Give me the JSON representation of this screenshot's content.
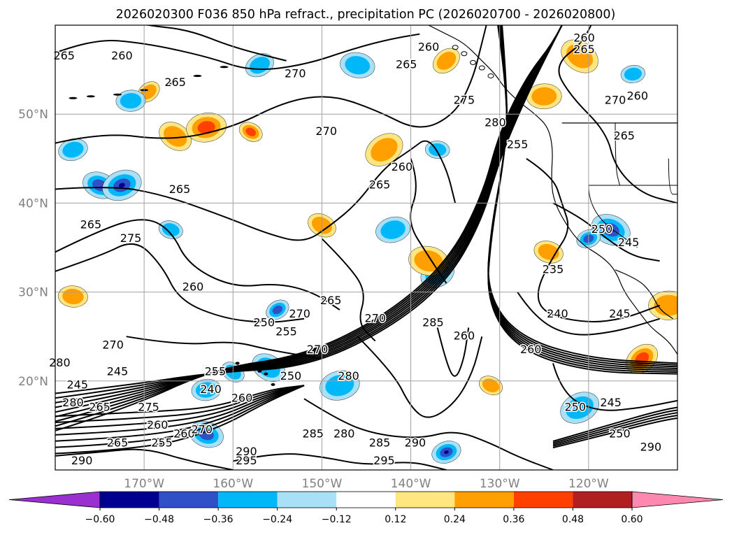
{
  "title": "2026020300 F036 850 hPa refract., precipitation PC (2026020700 - 2026020800)",
  "chart_data": {
    "type": "contour-map",
    "title": "2026020300 F036 850 hPa refract., precipitation PC (2026020700 - 2026020800)",
    "projection": "lat-lon",
    "lon_range": [
      -180,
      -110
    ],
    "lat_range": [
      10,
      60
    ],
    "grid": true,
    "x_ticks": [
      "170°W",
      "160°W",
      "150°W",
      "140°W",
      "130°W",
      "120°W"
    ],
    "x_tick_values": [
      -170,
      -160,
      -150,
      -140,
      -130,
      -120
    ],
    "y_ticks": [
      "20°N",
      "30°N",
      "40°N",
      "50°N"
    ],
    "y_tick_values": [
      20,
      30,
      40,
      50
    ],
    "contour_labels": [
      {
        "text": "265",
        "lon": -179,
        "lat": 56.5
      },
      {
        "text": "260",
        "lon": -172.5,
        "lat": 56.5
      },
      {
        "text": "265",
        "lon": -166.5,
        "lat": 53.5
      },
      {
        "text": "270",
        "lon": -153,
        "lat": 54.5
      },
      {
        "text": "265",
        "lon": -140.5,
        "lat": 55.5
      },
      {
        "text": "260",
        "lon": -138,
        "lat": 57.5
      },
      {
        "text": "275",
        "lon": -134,
        "lat": 51.5
      },
      {
        "text": "280",
        "lon": -130.5,
        "lat": 49
      },
      {
        "text": "270",
        "lon": -149.5,
        "lat": 48
      },
      {
        "text": "260",
        "lon": -141,
        "lat": 44
      },
      {
        "text": "265",
        "lon": -143.5,
        "lat": 42
      },
      {
        "text": "255",
        "lon": -128,
        "lat": 46.5
      },
      {
        "text": "260",
        "lon": -120.5,
        "lat": 58.5
      },
      {
        "text": "265",
        "lon": -120.5,
        "lat": 57.2
      },
      {
        "text": "270",
        "lon": -117,
        "lat": 51.5
      },
      {
        "text": "260",
        "lon": -114.5,
        "lat": 52
      },
      {
        "text": "265",
        "lon": -116,
        "lat": 47.5
      },
      {
        "text": "265",
        "lon": -166,
        "lat": 41.5
      },
      {
        "text": "265",
        "lon": -176,
        "lat": 37.5
      },
      {
        "text": "275",
        "lon": -171.5,
        "lat": 36
      },
      {
        "text": "260",
        "lon": -164.5,
        "lat": 30.5
      },
      {
        "text": "265",
        "lon": -149,
        "lat": 29
      },
      {
        "text": "270",
        "lon": -144,
        "lat": 27
      },
      {
        "text": "250",
        "lon": -156.5,
        "lat": 26.5
      },
      {
        "text": "255",
        "lon": -154,
        "lat": 25.5
      },
      {
        "text": "270",
        "lon": -152.5,
        "lat": 27.5
      },
      {
        "text": "270",
        "lon": -150.5,
        "lat": 23.5
      },
      {
        "text": "285",
        "lon": -137.5,
        "lat": 26.5
      },
      {
        "text": "260",
        "lon": -134,
        "lat": 25
      },
      {
        "text": "260",
        "lon": -126.5,
        "lat": 23.5
      },
      {
        "text": "240",
        "lon": -123.5,
        "lat": 27.5
      },
      {
        "text": "245",
        "lon": -116.5,
        "lat": 27.5
      },
      {
        "text": "235",
        "lon": -124,
        "lat": 32.5
      },
      {
        "text": "250",
        "lon": -118.5,
        "lat": 37
      },
      {
        "text": "245",
        "lon": -115.5,
        "lat": 35.5
      },
      {
        "text": "280",
        "lon": -179.5,
        "lat": 22
      },
      {
        "text": "270",
        "lon": -173.5,
        "lat": 24
      },
      {
        "text": "245",
        "lon": -177.5,
        "lat": 19.5
      },
      {
        "text": "245",
        "lon": -173,
        "lat": 21
      },
      {
        "text": "240",
        "lon": -162.5,
        "lat": 19
      },
      {
        "text": "255",
        "lon": -162,
        "lat": 21
      },
      {
        "text": "250",
        "lon": -153.5,
        "lat": 20.5
      },
      {
        "text": "260",
        "lon": -159,
        "lat": 18
      },
      {
        "text": "280",
        "lon": -147,
        "lat": 20.5
      },
      {
        "text": "280",
        "lon": -178,
        "lat": 17.5
      },
      {
        "text": "265",
        "lon": -175,
        "lat": 17
      },
      {
        "text": "275",
        "lon": -169.5,
        "lat": 17
      },
      {
        "text": "285",
        "lon": -151,
        "lat": 14
      },
      {
        "text": "280",
        "lon": -147.5,
        "lat": 14
      },
      {
        "text": "285",
        "lon": -143.5,
        "lat": 13
      },
      {
        "text": "290",
        "lon": -139.5,
        "lat": 13
      },
      {
        "text": "295",
        "lon": -143,
        "lat": 11
      },
      {
        "text": "290",
        "lon": -158.5,
        "lat": 12
      },
      {
        "text": "295",
        "lon": -158.5,
        "lat": 11
      },
      {
        "text": "290",
        "lon": -177,
        "lat": 11
      },
      {
        "text": "250",
        "lon": -121.5,
        "lat": 17
      },
      {
        "text": "245",
        "lon": -117.5,
        "lat": 17.5
      },
      {
        "text": "250",
        "lon": -116.5,
        "lat": 14
      },
      {
        "text": "290",
        "lon": -113,
        "lat": 12.5
      },
      {
        "text": "265",
        "lon": -173,
        "lat": 13
      },
      {
        "text": "260",
        "lon": -168.5,
        "lat": 15
      },
      {
        "text": "255",
        "lon": -168,
        "lat": 13
      },
      {
        "text": "260",
        "lon": -165.5,
        "lat": 14
      },
      {
        "text": "270",
        "lon": -163.5,
        "lat": 14.5
      }
    ],
    "colorbar": {
      "type": "discrete",
      "extend": "both",
      "bounds": [
        -0.72,
        -0.6,
        -0.48,
        -0.36,
        -0.24,
        -0.12,
        0.12,
        0.24,
        0.36,
        0.48,
        0.6,
        0.72
      ],
      "colors": [
        "#9b30d0",
        "#000090",
        "#3050c8",
        "#00b8f8",
        "#a8e0f8",
        "#ffffff",
        "#ffe680",
        "#ffa000",
        "#ff4000",
        "#b02020",
        "#ff88b0"
      ],
      "tick_labels": [
        "−0.60",
        "−0.48",
        "−0.36",
        "−0.24",
        "−0.12",
        "0.12",
        "0.24",
        "0.36",
        "0.48",
        "0.60"
      ],
      "tick_values": [
        -0.6,
        -0.48,
        -0.36,
        -0.24,
        -0.12,
        0.12,
        0.24,
        0.36,
        0.48,
        0.6
      ]
    },
    "precip_patches": [
      {
        "lon": -169.5,
        "lat": 52.5,
        "v": 0.24
      },
      {
        "lon": -171.5,
        "lat": 51.5,
        "v": -0.24
      },
      {
        "lon": -166.5,
        "lat": 47.5,
        "v": 0.24
      },
      {
        "lon": -163,
        "lat": 48.5,
        "v": 0.36
      },
      {
        "lon": -158,
        "lat": 48,
        "v": 0.36
      },
      {
        "lon": -178,
        "lat": 46,
        "v": -0.24
      },
      {
        "lon": -175,
        "lat": 42,
        "v": -0.36
      },
      {
        "lon": -172.5,
        "lat": 42,
        "v": -0.48
      },
      {
        "lon": -167,
        "lat": 37,
        "v": -0.24
      },
      {
        "lon": -157,
        "lat": 55.5,
        "v": -0.24
      },
      {
        "lon": -146,
        "lat": 55.5,
        "v": -0.24
      },
      {
        "lon": -143,
        "lat": 46,
        "v": 0.24
      },
      {
        "lon": -137,
        "lat": 46,
        "v": -0.24
      },
      {
        "lon": -136,
        "lat": 56,
        "v": 0.24
      },
      {
        "lon": -125,
        "lat": 52,
        "v": 0.24
      },
      {
        "lon": -121,
        "lat": 56.5,
        "v": 0.24
      },
      {
        "lon": -115,
        "lat": 54.5,
        "v": -0.24
      },
      {
        "lon": -150,
        "lat": 37.5,
        "v": 0.24
      },
      {
        "lon": -142,
        "lat": 37,
        "v": -0.24
      },
      {
        "lon": -117.5,
        "lat": 37,
        "v": -0.48
      },
      {
        "lon": -120,
        "lat": 36,
        "v": -0.36
      },
      {
        "lon": -124.5,
        "lat": 34.5,
        "v": 0.24
      },
      {
        "lon": -137,
        "lat": 32,
        "v": -0.24
      },
      {
        "lon": -138,
        "lat": 33.5,
        "v": 0.24
      },
      {
        "lon": -155,
        "lat": 28,
        "v": -0.36
      },
      {
        "lon": -178,
        "lat": 29.5,
        "v": 0.24
      },
      {
        "lon": -114,
        "lat": 22.5,
        "v": 0.36
      },
      {
        "lon": -111,
        "lat": 28.5,
        "v": 0.24
      },
      {
        "lon": -160,
        "lat": 21,
        "v": -0.24
      },
      {
        "lon": -163,
        "lat": 19,
        "v": -0.24
      },
      {
        "lon": -156,
        "lat": 21.5,
        "v": -0.24
      },
      {
        "lon": -148,
        "lat": 19.5,
        "v": -0.24
      },
      {
        "lon": -131,
        "lat": 19.5,
        "v": 0.24
      },
      {
        "lon": -136,
        "lat": 12,
        "v": -0.48
      },
      {
        "lon": -163,
        "lat": 14,
        "v": -0.36
      },
      {
        "lon": -121,
        "lat": 17,
        "v": -0.24
      }
    ]
  }
}
